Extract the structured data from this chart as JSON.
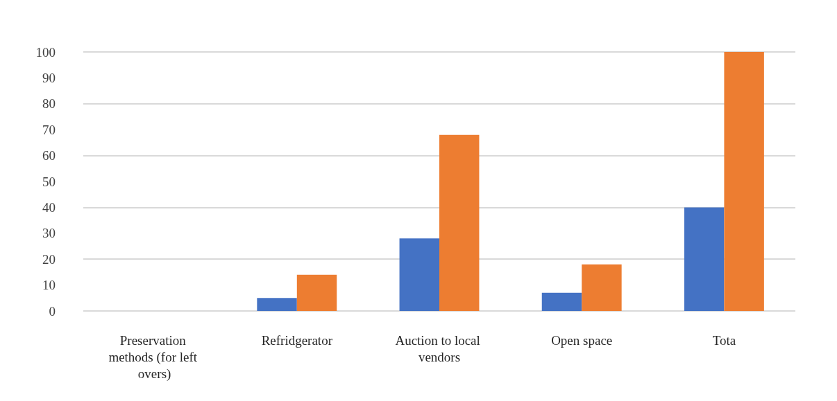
{
  "chart_data": {
    "type": "bar",
    "categories": [
      "Preservation methods (for left overs)",
      "Refridgerator",
      "Auction to local vendors",
      "Open space",
      "Tota"
    ],
    "series": [
      {
        "color": "#4472c4",
        "values": [
          null,
          5,
          28,
          7,
          40
        ]
      },
      {
        "color": "#ed7d31",
        "values": [
          null,
          14,
          68,
          18,
          100
        ]
      }
    ],
    "ylim": [
      0,
      100
    ],
    "yticks": [
      0,
      10,
      20,
      30,
      40,
      50,
      60,
      70,
      80,
      90,
      100
    ],
    "grid": "y"
  }
}
